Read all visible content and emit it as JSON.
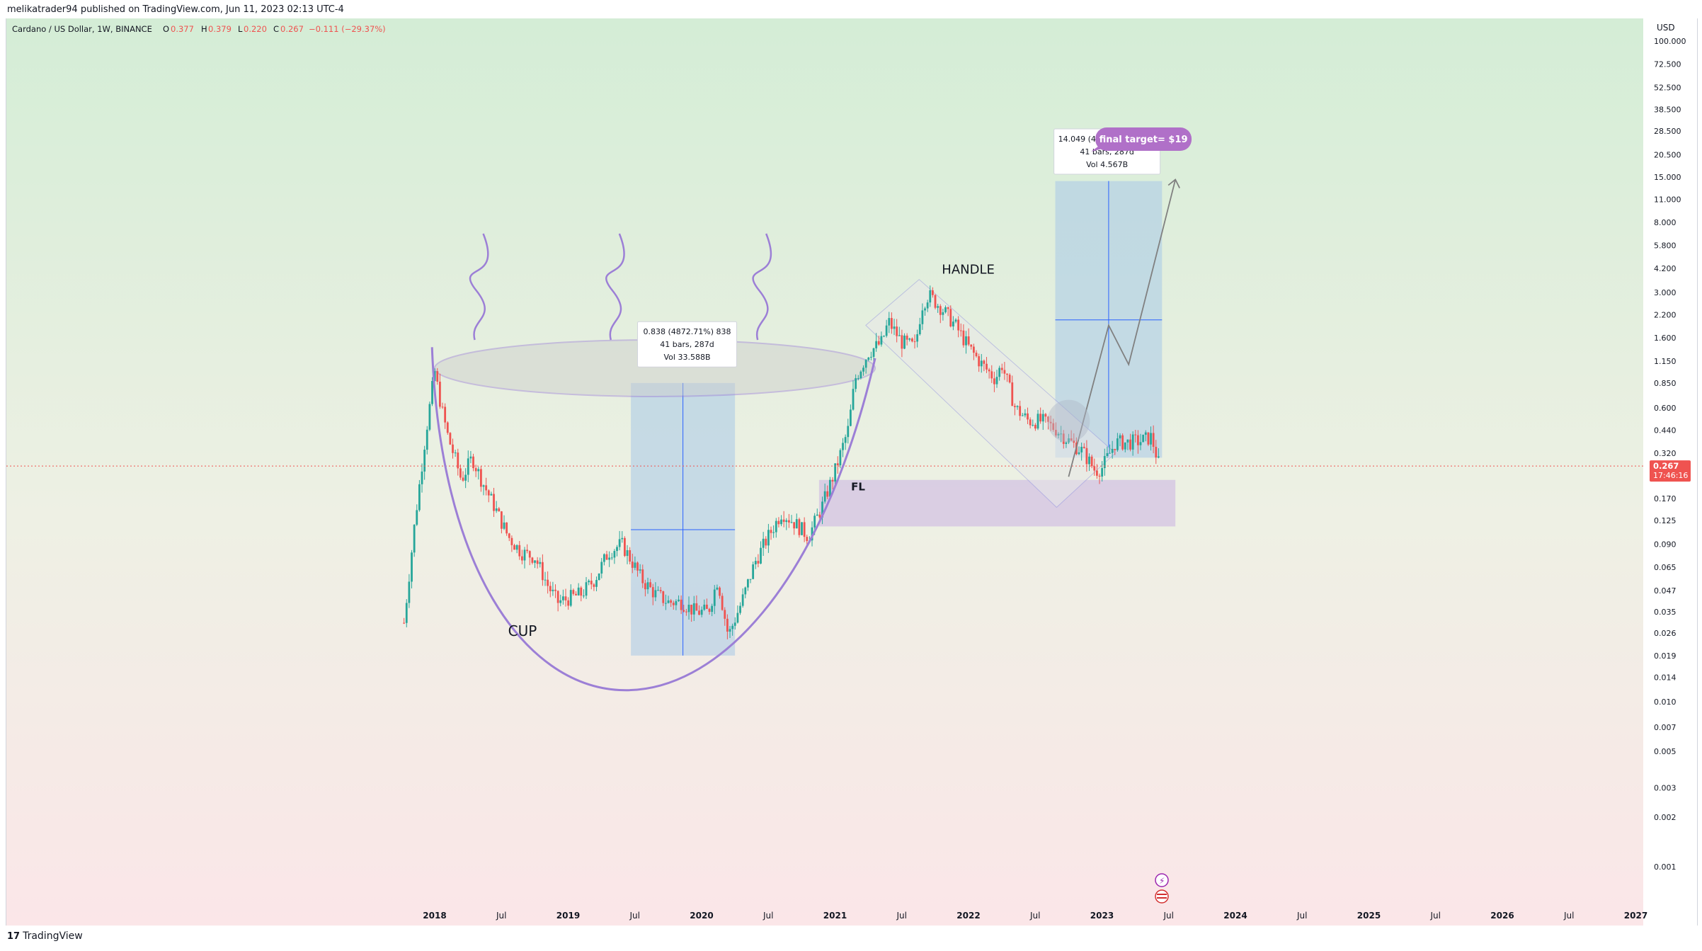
{
  "publish_line": "melikatrader94 published on TradingView.com, Jun 11, 2023 02:13 UTC-4",
  "legend": {
    "symbol": "Cardano / US Dollar, 1W, BINANCE",
    "o_label": "O",
    "o_value": "0.377",
    "h_label": "H",
    "h_value": "0.379",
    "l_label": "L",
    "l_value": "0.220",
    "c_label": "C",
    "c_value": "0.267",
    "change": "−0.111 (−29.37%)"
  },
  "branding": {
    "logo_text": "TradingView"
  },
  "colors": {
    "up": "#26a69a",
    "down": "#ef5350",
    "drawing": "#9c7fd6",
    "projection": "#a8c8e8",
    "fl_zone": "#d3c3e3",
    "target_badge": "#b070c8"
  },
  "chart_data": {
    "type": "candlestick",
    "scale": "log",
    "currency": "USD",
    "ylim": [
      0.001,
      100
    ],
    "y_ticks": [
      {
        "v": 100,
        "label": "100.000"
      },
      {
        "v": 72.5,
        "label": "72.500"
      },
      {
        "v": 52.5,
        "label": "52.500"
      },
      {
        "v": 38.5,
        "label": "38.500"
      },
      {
        "v": 28.5,
        "label": "28.500"
      },
      {
        "v": 20.5,
        "label": "20.500"
      },
      {
        "v": 15,
        "label": "15.000"
      },
      {
        "v": 11,
        "label": "11.000"
      },
      {
        "v": 8,
        "label": "8.000"
      },
      {
        "v": 5.8,
        "label": "5.800"
      },
      {
        "v": 4.2,
        "label": "4.200"
      },
      {
        "v": 3,
        "label": "3.000"
      },
      {
        "v": 2.2,
        "label": "2.200"
      },
      {
        "v": 1.6,
        "label": "1.600"
      },
      {
        "v": 1.15,
        "label": "1.150"
      },
      {
        "v": 0.85,
        "label": "0.850"
      },
      {
        "v": 0.6,
        "label": "0.600"
      },
      {
        "v": 0.44,
        "label": "0.440"
      },
      {
        "v": 0.32,
        "label": "0.320"
      },
      {
        "v": 0.17,
        "label": "0.170"
      },
      {
        "v": 0.125,
        "label": "0.125"
      },
      {
        "v": 0.09,
        "label": "0.090"
      },
      {
        "v": 0.065,
        "label": "0.065"
      },
      {
        "v": 0.047,
        "label": "0.047"
      },
      {
        "v": 0.035,
        "label": "0.035"
      },
      {
        "v": 0.026,
        "label": "0.026"
      },
      {
        "v": 0.019,
        "label": "0.019"
      },
      {
        "v": 0.014,
        "label": "0.014"
      },
      {
        "v": 0.01,
        "label": "0.010"
      },
      {
        "v": 0.007,
        "label": "0.007"
      },
      {
        "v": 0.005,
        "label": "0.005"
      },
      {
        "v": 0.003,
        "label": "0.003"
      },
      {
        "v": 0.002,
        "label": "0.002"
      },
      {
        "v": 0.001,
        "label": "0.001"
      }
    ],
    "x_ticks": [
      {
        "t": 2018.0,
        "label": "2018",
        "bold": true
      },
      {
        "t": 2018.5,
        "label": "Jul"
      },
      {
        "t": 2019.0,
        "label": "2019",
        "bold": true
      },
      {
        "t": 2019.5,
        "label": "Jul"
      },
      {
        "t": 2020.0,
        "label": "2020",
        "bold": true
      },
      {
        "t": 2020.5,
        "label": "Jul"
      },
      {
        "t": 2021.0,
        "label": "2021",
        "bold": true
      },
      {
        "t": 2021.5,
        "label": "Jul"
      },
      {
        "t": 2022.0,
        "label": "2022",
        "bold": true
      },
      {
        "t": 2022.5,
        "label": "Jul"
      },
      {
        "t": 2023.0,
        "label": "2023",
        "bold": true
      },
      {
        "t": 2023.5,
        "label": "Jul"
      },
      {
        "t": 2024.0,
        "label": "2024",
        "bold": true
      },
      {
        "t": 2024.5,
        "label": "Jul"
      },
      {
        "t": 2025.0,
        "label": "2025",
        "bold": true
      },
      {
        "t": 2025.5,
        "label": "Jul"
      },
      {
        "t": 2026.0,
        "label": "2026",
        "bold": true
      },
      {
        "t": 2026.5,
        "label": "Jul"
      },
      {
        "t": 2027.0,
        "label": "2027",
        "bold": true
      }
    ],
    "price_path": [
      [
        2017.77,
        0.03
      ],
      [
        2017.85,
        0.12
      ],
      [
        2017.93,
        0.4
      ],
      [
        2018.0,
        1.0
      ],
      [
        2018.05,
        0.6
      ],
      [
        2018.1,
        0.4
      ],
      [
        2018.15,
        0.3
      ],
      [
        2018.2,
        0.22
      ],
      [
        2018.28,
        0.3
      ],
      [
        2018.35,
        0.22
      ],
      [
        2018.45,
        0.15
      ],
      [
        2018.55,
        0.1
      ],
      [
        2018.65,
        0.08
      ],
      [
        2018.75,
        0.075
      ],
      [
        2018.85,
        0.05
      ],
      [
        2018.92,
        0.04
      ],
      [
        2019.0,
        0.042
      ],
      [
        2019.1,
        0.045
      ],
      [
        2019.2,
        0.055
      ],
      [
        2019.3,
        0.08
      ],
      [
        2019.4,
        0.09
      ],
      [
        2019.48,
        0.07
      ],
      [
        2019.55,
        0.055
      ],
      [
        2019.65,
        0.045
      ],
      [
        2019.75,
        0.04
      ],
      [
        2019.85,
        0.04
      ],
      [
        2019.95,
        0.035
      ],
      [
        2020.05,
        0.035
      ],
      [
        2020.12,
        0.055
      ],
      [
        2020.2,
        0.025
      ],
      [
        2020.3,
        0.04
      ],
      [
        2020.4,
        0.07
      ],
      [
        2020.5,
        0.1
      ],
      [
        2020.6,
        0.14
      ],
      [
        2020.7,
        0.12
      ],
      [
        2020.8,
        0.1
      ],
      [
        2020.9,
        0.15
      ],
      [
        2021.0,
        0.25
      ],
      [
        2021.1,
        0.45
      ],
      [
        2021.15,
        0.9
      ],
      [
        2021.25,
        1.3
      ],
      [
        2021.35,
        1.5
      ],
      [
        2021.4,
        2.0
      ],
      [
        2021.5,
        1.5
      ],
      [
        2021.6,
        1.4
      ],
      [
        2021.65,
        2.5
      ],
      [
        2021.7,
        2.9
      ],
      [
        2021.8,
        2.4
      ],
      [
        2021.9,
        1.9
      ],
      [
        2022.0,
        1.4
      ],
      [
        2022.1,
        1.1
      ],
      [
        2022.2,
        0.9
      ],
      [
        2022.25,
        1.1
      ],
      [
        2022.35,
        0.6
      ],
      [
        2022.45,
        0.5
      ],
      [
        2022.55,
        0.5
      ],
      [
        2022.65,
        0.45
      ],
      [
        2022.75,
        0.38
      ],
      [
        2022.85,
        0.33
      ],
      [
        2022.95,
        0.25
      ],
      [
        2023.0,
        0.26
      ],
      [
        2023.1,
        0.37
      ],
      [
        2023.2,
        0.37
      ],
      [
        2023.3,
        0.38
      ],
      [
        2023.37,
        0.4
      ],
      [
        2023.43,
        0.267
      ]
    ],
    "last_price": "0.267",
    "countdown": "17:46:16",
    "annotations": [
      {
        "text": "CUP"
      },
      {
        "text": "HANDLE"
      },
      {
        "text": "FL"
      },
      {
        "text": "final target= $19"
      },
      {
        "lines": [
          "0.838 (4872.71%) 838",
          "41 bars, 287d",
          "Vol 33.588B"
        ]
      },
      {
        "lines": [
          "14.049 (4846.22%) 1404",
          "41 bars, 287d",
          "Vol 4.567B"
        ]
      }
    ]
  }
}
